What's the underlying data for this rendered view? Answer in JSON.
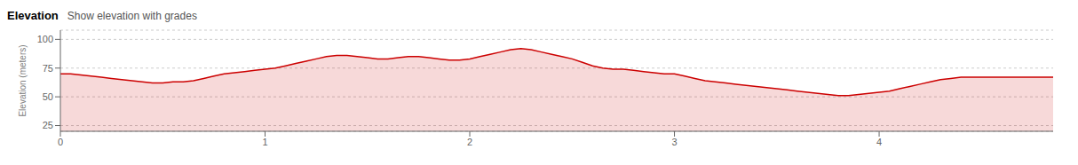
{
  "chart_data": {
    "type": "area",
    "title": "Elevation",
    "subtitle": "Show elevation with grades",
    "ylabel": "Elevation (meters)",
    "color": "#cc0000",
    "grid": true,
    "xlim": [
      0,
      4.85
    ],
    "xticks": [
      0,
      1,
      2,
      3,
      4
    ],
    "ylim": [
      20,
      108
    ],
    "yticks": [
      25,
      50,
      75,
      100
    ],
    "x": [
      0.0,
      0.05,
      0.1,
      0.15,
      0.2,
      0.25,
      0.3,
      0.35,
      0.4,
      0.45,
      0.5,
      0.55,
      0.6,
      0.65,
      0.7,
      0.75,
      0.8,
      0.85,
      0.9,
      0.95,
      1.0,
      1.05,
      1.1,
      1.15,
      1.2,
      1.25,
      1.3,
      1.35,
      1.4,
      1.45,
      1.5,
      1.55,
      1.6,
      1.65,
      1.7,
      1.75,
      1.8,
      1.85,
      1.9,
      1.95,
      2.0,
      2.05,
      2.1,
      2.15,
      2.2,
      2.25,
      2.3,
      2.35,
      2.4,
      2.45,
      2.5,
      2.55,
      2.6,
      2.65,
      2.7,
      2.75,
      2.8,
      2.85,
      2.9,
      2.95,
      3.0,
      3.05,
      3.1,
      3.15,
      3.2,
      3.25,
      3.3,
      3.35,
      3.4,
      3.45,
      3.5,
      3.55,
      3.6,
      3.65,
      3.7,
      3.75,
      3.8,
      3.85,
      3.9,
      3.95,
      4.0,
      4.05,
      4.1,
      4.15,
      4.2,
      4.25,
      4.3,
      4.35,
      4.4,
      4.45,
      4.5,
      4.55,
      4.6,
      4.65,
      4.7,
      4.75,
      4.8,
      4.85
    ],
    "values": [
      70,
      70,
      69,
      68,
      67,
      66,
      65,
      64,
      63,
      62,
      62,
      63,
      63,
      64,
      66,
      68,
      70,
      71,
      72,
      73,
      74,
      75,
      77,
      79,
      81,
      83,
      85,
      86,
      86,
      85,
      84,
      83,
      83,
      84,
      85,
      85,
      84,
      83,
      82,
      82,
      83,
      85,
      87,
      89,
      91,
      92,
      91,
      89,
      87,
      85,
      83,
      80,
      77,
      75,
      74,
      74,
      73,
      72,
      71,
      70,
      70,
      68,
      66,
      64,
      63,
      62,
      61,
      60,
      59,
      58,
      57,
      56,
      55,
      54,
      53,
      52,
      51,
      51,
      52,
      53,
      54,
      55,
      57,
      59,
      61,
      63,
      65,
      66,
      67,
      67,
      67,
      67,
      67,
      67,
      67,
      67,
      67,
      67
    ]
  }
}
